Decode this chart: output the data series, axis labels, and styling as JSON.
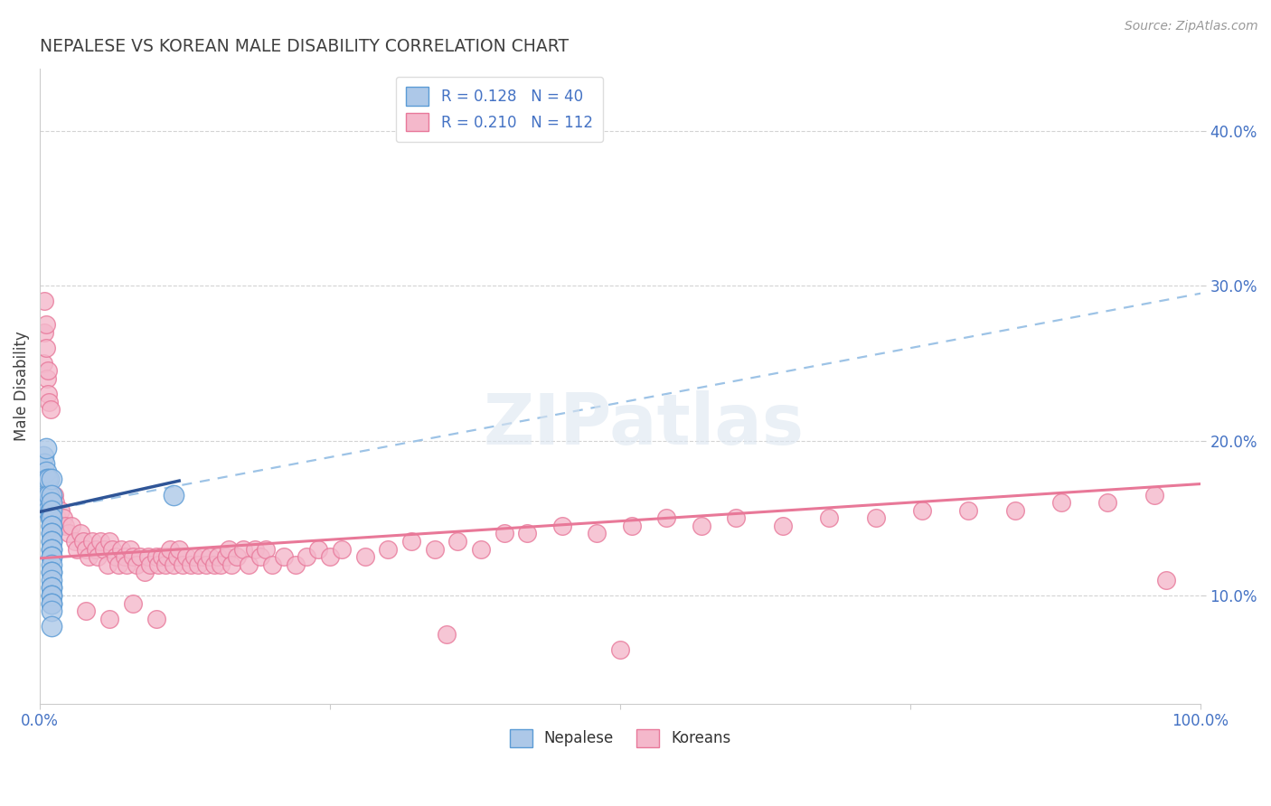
{
  "title": "NEPALESE VS KOREAN MALE DISABILITY CORRELATION CHART",
  "source_text": "Source: ZipAtlas.com",
  "ylabel": "Male Disability",
  "xlim": [
    0.0,
    1.0
  ],
  "ylim": [
    0.03,
    0.44
  ],
  "yticks": [
    0.1,
    0.2,
    0.3,
    0.4
  ],
  "ytick_labels": [
    "10.0%",
    "20.0%",
    "30.0%",
    "40.0%"
  ],
  "xticks": [
    0.0,
    0.25,
    0.5,
    0.75,
    1.0
  ],
  "xtick_labels": [
    "0.0%",
    "",
    "",
    "",
    "100.0%"
  ],
  "legend_R1": "R = 0.128",
  "legend_N1": "N = 40",
  "legend_R2": "R = 0.210",
  "legend_N2": "N = 112",
  "nepalese_color": "#adc8e8",
  "nepalese_edge_color": "#5b9bd5",
  "korean_color": "#f4b8cb",
  "korean_edge_color": "#e8789a",
  "trend_nepalese_solid_color": "#2f5597",
  "trend_nepalese_dash_color": "#9dc3e6",
  "trend_korean_color": "#e87898",
  "background_color": "#ffffff",
  "grid_color": "#c8c8c8",
  "title_color": "#404040",
  "axis_label_color": "#404040",
  "tick_color": "#4472c4",
  "watermark_color": "#dce6f1",
  "nepalese_x": [
    0.003,
    0.004,
    0.005,
    0.005,
    0.006,
    0.006,
    0.007,
    0.007,
    0.008,
    0.008,
    0.009,
    0.009,
    0.01,
    0.01,
    0.01,
    0.01,
    0.01,
    0.01,
    0.01,
    0.01,
    0.01,
    0.01,
    0.01,
    0.01,
    0.01,
    0.01,
    0.01,
    0.01,
    0.01,
    0.01,
    0.01,
    0.01,
    0.01,
    0.01,
    0.01,
    0.01,
    0.01,
    0.01,
    0.01,
    0.115
  ],
  "nepalese_y": [
    0.19,
    0.185,
    0.195,
    0.18,
    0.175,
    0.165,
    0.16,
    0.155,
    0.175,
    0.165,
    0.15,
    0.155,
    0.175,
    0.165,
    0.16,
    0.155,
    0.15,
    0.145,
    0.145,
    0.14,
    0.14,
    0.135,
    0.135,
    0.13,
    0.13,
    0.125,
    0.125,
    0.12,
    0.115,
    0.115,
    0.11,
    0.105,
    0.105,
    0.1,
    0.1,
    0.095,
    0.095,
    0.09,
    0.08,
    0.165
  ],
  "korean_x": [
    0.003,
    0.004,
    0.004,
    0.005,
    0.005,
    0.006,
    0.007,
    0.007,
    0.008,
    0.009,
    0.01,
    0.012,
    0.013,
    0.015,
    0.016,
    0.018,
    0.02,
    0.022,
    0.025,
    0.027,
    0.03,
    0.032,
    0.035,
    0.037,
    0.04,
    0.042,
    0.045,
    0.048,
    0.05,
    0.052,
    0.055,
    0.058,
    0.06,
    0.062,
    0.065,
    0.068,
    0.07,
    0.073,
    0.075,
    0.078,
    0.08,
    0.083,
    0.086,
    0.09,
    0.093,
    0.095,
    0.1,
    0.102,
    0.105,
    0.108,
    0.11,
    0.112,
    0.115,
    0.118,
    0.12,
    0.123,
    0.126,
    0.13,
    0.133,
    0.136,
    0.14,
    0.143,
    0.146,
    0.15,
    0.153,
    0.156,
    0.16,
    0.163,
    0.165,
    0.17,
    0.175,
    0.18,
    0.185,
    0.19,
    0.195,
    0.2,
    0.21,
    0.22,
    0.23,
    0.24,
    0.25,
    0.26,
    0.28,
    0.3,
    0.32,
    0.34,
    0.36,
    0.38,
    0.4,
    0.42,
    0.45,
    0.48,
    0.51,
    0.54,
    0.57,
    0.6,
    0.64,
    0.68,
    0.72,
    0.76,
    0.8,
    0.84,
    0.88,
    0.92,
    0.96,
    0.97,
    0.04,
    0.06,
    0.08,
    0.1,
    0.35,
    0.5
  ],
  "korean_y": [
    0.25,
    0.27,
    0.29,
    0.26,
    0.275,
    0.24,
    0.245,
    0.23,
    0.225,
    0.22,
    0.155,
    0.165,
    0.16,
    0.15,
    0.145,
    0.155,
    0.15,
    0.145,
    0.14,
    0.145,
    0.135,
    0.13,
    0.14,
    0.135,
    0.13,
    0.125,
    0.135,
    0.13,
    0.125,
    0.135,
    0.13,
    0.12,
    0.135,
    0.13,
    0.125,
    0.12,
    0.13,
    0.125,
    0.12,
    0.13,
    0.125,
    0.12,
    0.125,
    0.115,
    0.125,
    0.12,
    0.125,
    0.12,
    0.125,
    0.12,
    0.125,
    0.13,
    0.12,
    0.125,
    0.13,
    0.12,
    0.125,
    0.12,
    0.125,
    0.12,
    0.125,
    0.12,
    0.125,
    0.12,
    0.125,
    0.12,
    0.125,
    0.13,
    0.12,
    0.125,
    0.13,
    0.12,
    0.13,
    0.125,
    0.13,
    0.12,
    0.125,
    0.12,
    0.125,
    0.13,
    0.125,
    0.13,
    0.125,
    0.13,
    0.135,
    0.13,
    0.135,
    0.13,
    0.14,
    0.14,
    0.145,
    0.14,
    0.145,
    0.15,
    0.145,
    0.15,
    0.145,
    0.15,
    0.15,
    0.155,
    0.155,
    0.155,
    0.16,
    0.16,
    0.165,
    0.11,
    0.09,
    0.085,
    0.095,
    0.085,
    0.075,
    0.065
  ]
}
